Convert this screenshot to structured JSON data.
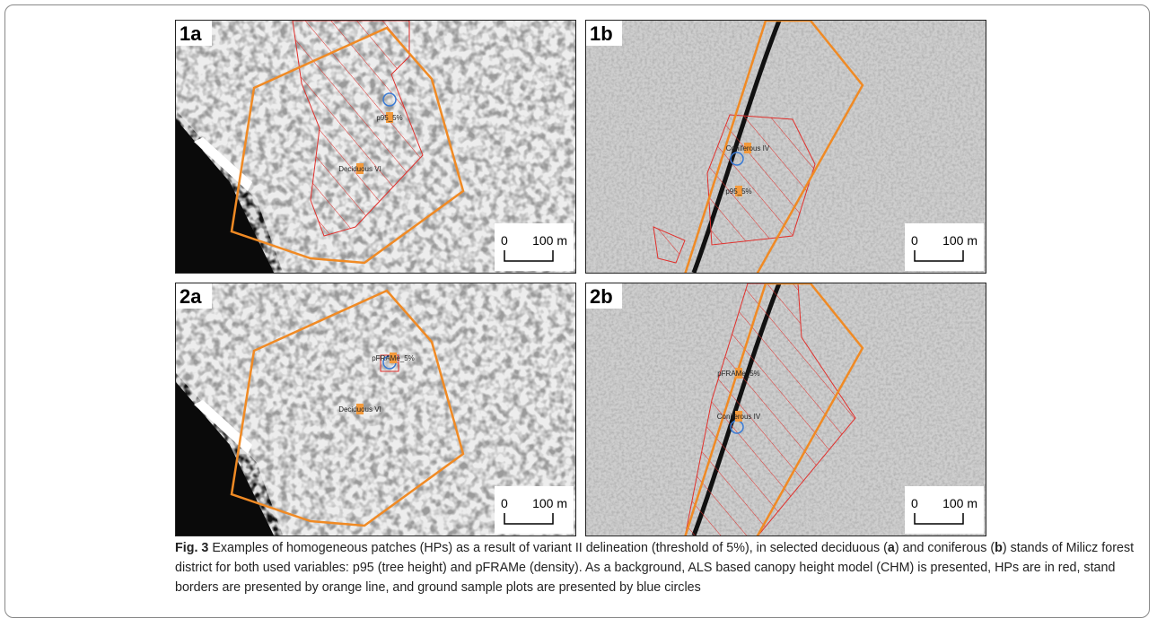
{
  "panels": [
    {
      "label": "1a",
      "annotations": [
        "p95_5%",
        "Deciduous VI"
      ],
      "scale_start": "0",
      "scale_end": "100 m"
    },
    {
      "label": "1b",
      "annotations": [
        "Coniferous IV",
        "p95_5%"
      ],
      "scale_start": "0",
      "scale_end": "100 m"
    },
    {
      "label": "2a",
      "annotations": [
        "pFRAMe_5%",
        "Deciduous VI"
      ],
      "scale_start": "0",
      "scale_end": "100 m"
    },
    {
      "label": "2b",
      "annotations": [
        "pFRAMe_5%",
        "Coniferous IV"
      ],
      "scale_start": "0",
      "scale_end": "100 m"
    }
  ],
  "caption": {
    "figure_label": "Fig. 3",
    "parts": [
      "Examples of homogeneous patches (HPs) as a result of variant II delineation (threshold of 5%), in selected deciduous (",
      "a",
      ") and coniferous (",
      "b",
      ") stands of Milicz forest district for both used variables: p95 (tree height) and pFRAMe (density). As a background, ALS based canopy height model (CHM) is presented, HPs are in red, stand borders are presented by orange line, and ground sample plots are presented by blue circles"
    ]
  }
}
